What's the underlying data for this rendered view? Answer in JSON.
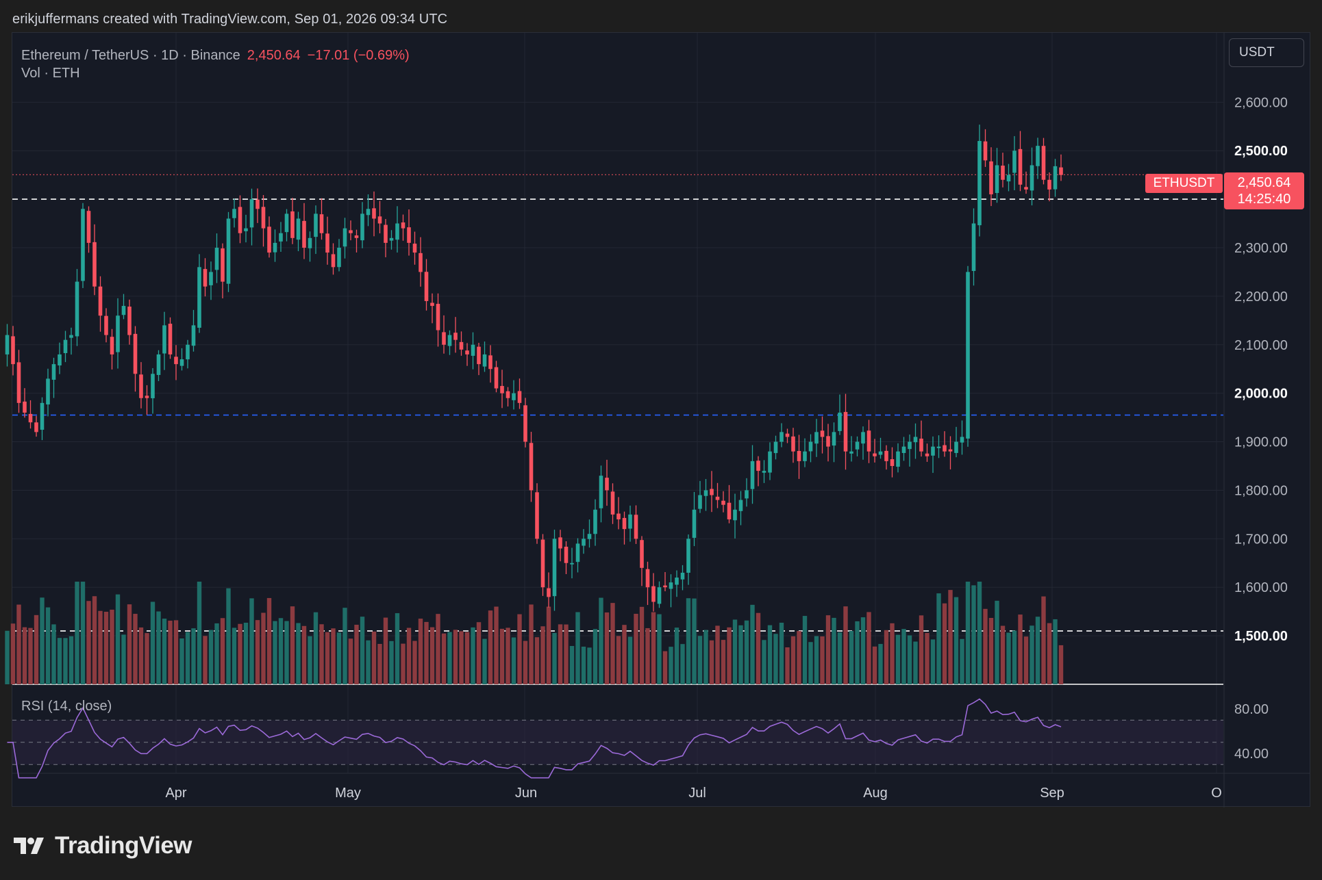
{
  "attribution": "erikjuffermans created with TradingView.com, Sep 01, 2026 09:34 UTC",
  "legend": {
    "symbol_desc": "Ethereum / TetherUS · 1D · Binance",
    "last_price": "2,450.64",
    "change": "−17.01 (−0.69%)",
    "volume": "Vol · ETH",
    "rsi": "RSI (14, close)"
  },
  "currency": "USDT",
  "price_tag": {
    "symbol": "ETHUSDT",
    "price": "2,450.64",
    "countdown": "14:25:40"
  },
  "logo_text": "TradingView",
  "colors": {
    "up": "#26a69a",
    "down": "#f7525f",
    "up_vol": "#1f6e68",
    "down_vol": "#8c3b40",
    "rsi_line": "#9c6ad9",
    "bg": "#161a25"
  },
  "icons": [
    "tradingview-logo-icon"
  ],
  "chart_data": {
    "type": "candlestick",
    "symbol": "ETHUSDT",
    "interval": "1D",
    "y_ticks": [
      "2,600.00",
      "2,500.00",
      "2,300.00",
      "2,200.00",
      "2,100.00",
      "2,000.00",
      "1,900.00",
      "1,800.00",
      "1,700.00",
      "1,600.00",
      "1,500.00"
    ],
    "x_ticks": [
      "Apr",
      "May",
      "Jun",
      "Jul",
      "Aug",
      "Sep",
      "O"
    ],
    "ylim": [
      1420,
      2690
    ],
    "start_date": "2026-03-03",
    "grid": true,
    "horizontal_lines": [
      {
        "price": 2450.64,
        "style": "dotted",
        "color": "#f7525f"
      },
      {
        "price": 2400,
        "style": "dashed",
        "color": "#ffffff"
      },
      {
        "price": 1955,
        "style": "dashed",
        "color": "#2962ff"
      },
      {
        "price": 1510,
        "style": "dashed",
        "color": "#ffffff"
      }
    ],
    "closes": [
      2120,
      2060,
      1980,
      1960,
      1940,
      1920,
      1980,
      2030,
      2060,
      2080,
      2110,
      2120,
      2230,
      2380,
      2310,
      2220,
      2160,
      2120,
      2080,
      2160,
      2180,
      2120,
      2040,
      1990,
      1990,
      2040,
      2080,
      2140,
      2080,
      2060,
      2070,
      2100,
      2140,
      2260,
      2220,
      2250,
      2300,
      2230,
      2360,
      2380,
      2330,
      2340,
      2400,
      2380,
      2340,
      2290,
      2310,
      2330,
      2370,
      2320,
      2360,
      2300,
      2320,
      2370,
      2330,
      2290,
      2260,
      2300,
      2340,
      2330,
      2320,
      2370,
      2380,
      2360,
      2350,
      2310,
      2320,
      2350,
      2340,
      2310,
      2290,
      2250,
      2190,
      2180,
      2130,
      2100,
      2120,
      2110,
      2090,
      2080,
      2100,
      2060,
      2080,
      2050,
      2010,
      2000,
      1990,
      2000,
      1980,
      1900,
      1800,
      1700,
      1600,
      1580,
      1700,
      1680,
      1650,
      1650,
      1690,
      1700,
      1710,
      1760,
      1830,
      1800,
      1750,
      1740,
      1720,
      1750,
      1700,
      1640,
      1600,
      1570,
      1600,
      1600,
      1610,
      1620,
      1630,
      1700,
      1760,
      1790,
      1800,
      1790,
      1780,
      1770,
      1740,
      1760,
      1780,
      1800,
      1860,
      1840,
      1840,
      1880,
      1900,
      1920,
      1910,
      1880,
      1860,
      1880,
      1900,
      1920,
      1910,
      1890,
      1920,
      1960,
      1880,
      1880,
      1900,
      1920,
      1880,
      1870,
      1880,
      1860,
      1850,
      1880,
      1890,
      1900,
      1910,
      1880,
      1870,
      1890,
      1890,
      1880,
      1880,
      1900,
      1910,
      2250,
      2350,
      2520,
      2480,
      2410,
      2470,
      2440,
      2450,
      2500,
      2430,
      2420,
      2470,
      2510,
      2440,
      2420,
      2468,
      2450
    ]
  }
}
